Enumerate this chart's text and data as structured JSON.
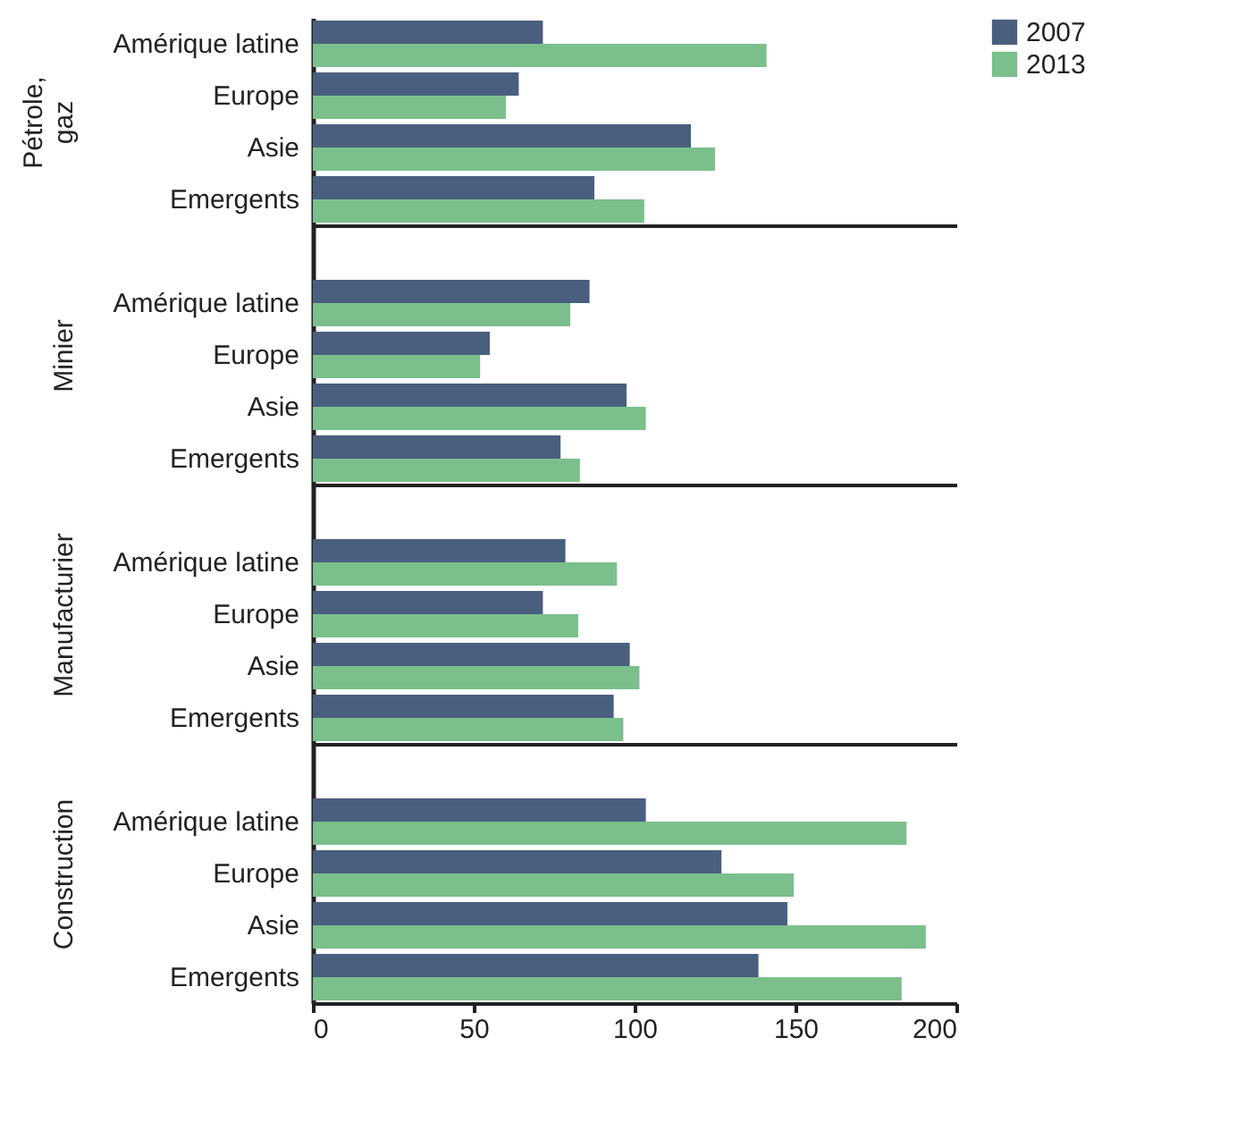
{
  "chart_data": [
    {
      "type": "bar",
      "orientation": "horizontal",
      "ylabel": "Pétrole, gaz",
      "categories": [
        "Amérique latine",
        "Europe",
        "Asie",
        "Emergents"
      ],
      "series": [
        {
          "name": "2007",
          "color": "#4a5f7e",
          "values": [
            71.5,
            64,
            117.5,
            87.5
          ]
        },
        {
          "name": "2013",
          "color": "#7bbf8c",
          "values": [
            141,
            60,
            125,
            103
          ]
        }
      ],
      "xlim": [
        0,
        200
      ],
      "xticks": [
        0,
        50,
        100,
        150,
        200
      ],
      "tick_labels": "y",
      "legend": "right",
      "grid": false
    },
    {
      "type": "bar",
      "orientation": "horizontal",
      "ylabel": "Minier",
      "categories": [
        null,
        "Amérique latine",
        "Europe",
        "Asie",
        "Emergents"
      ],
      "series": [
        {
          "name": "2007",
          "color": "#4a5f7e",
          "values": [
            null,
            86,
            55,
            97.5,
            77
          ]
        },
        {
          "name": "2013",
          "color": "#7bbf8c",
          "values": [
            null,
            80,
            52,
            103.5,
            83
          ]
        }
      ],
      "xlim": [
        0,
        200
      ],
      "xticks": [
        0,
        50,
        100,
        150,
        200
      ],
      "tick_labels": "y",
      "legend": "right",
      "grid": false
    },
    {
      "type": "bar",
      "orientation": "horizontal",
      "ylabel": "Manufacturier",
      "categories": [
        null,
        "Amérique latine",
        "Europe",
        "Asie",
        "Emergents"
      ],
      "series": [
        {
          "name": "2007",
          "color": "#4a5f7e",
          "values": [
            null,
            78.5,
            71.5,
            98.5,
            93.5
          ]
        },
        {
          "name": "2013",
          "color": "#7bbf8c",
          "values": [
            null,
            94.5,
            82.5,
            101.5,
            96.5
          ]
        }
      ],
      "xlim": [
        0,
        200
      ],
      "xticks": [
        0,
        50,
        100,
        150,
        200
      ],
      "tick_labels": "y",
      "legend": "right",
      "grid": false
    },
    {
      "type": "bar",
      "orientation": "horizontal",
      "ylabel": "Construction",
      "categories": [
        null,
        "Amérique latine",
        "Europe",
        "Asie",
        "Emergents"
      ],
      "series": [
        {
          "name": "2007",
          "color": "#4a5f7e",
          "values": [
            null,
            103.5,
            127,
            147.5,
            138.5
          ]
        },
        {
          "name": "2013",
          "color": "#7bbf8c",
          "values": [
            null,
            184.5,
            149.5,
            190.5,
            183
          ]
        }
      ],
      "xlim": [
        0,
        200
      ],
      "xticks": [
        0,
        50,
        100,
        150,
        200
      ],
      "legend": "right",
      "grid": false
    }
  ]
}
